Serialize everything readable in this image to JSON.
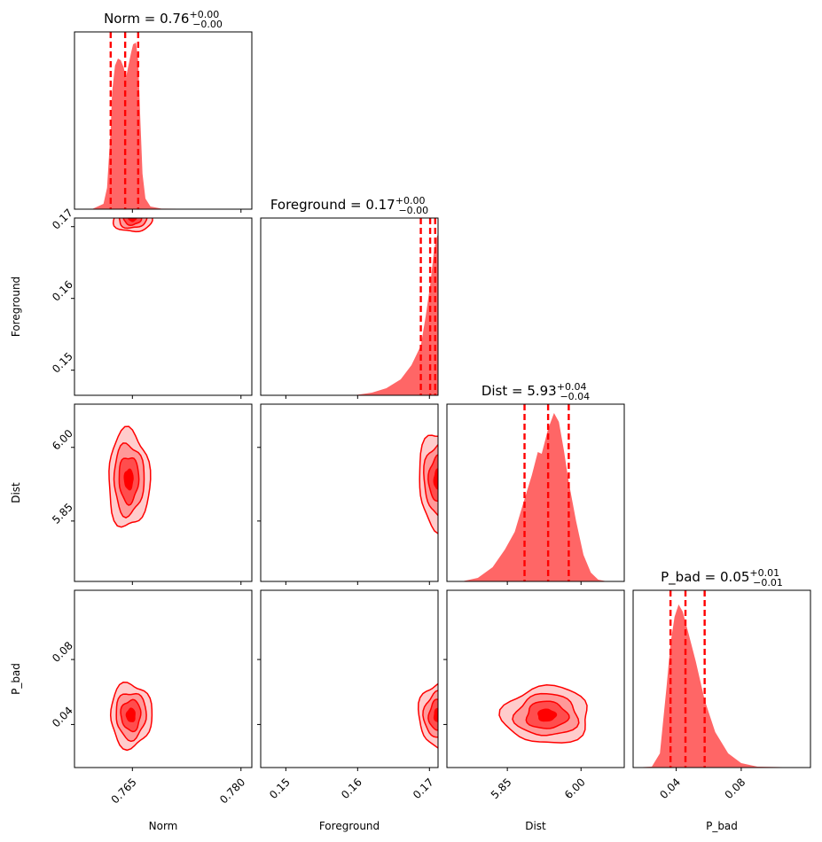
{
  "chart_data": {
    "type": "corner",
    "parameters": [
      "Norm",
      "Foreground",
      "Dist",
      "P_bad"
    ],
    "color": "#ff0000",
    "fill_color": "#ff6666",
    "panels_1d": [
      {
        "param": "Norm",
        "title_main": "Norm = 0.76",
        "title_sup": "+0.00",
        "title_sub": "−0.00",
        "quantiles": [
          0.762,
          0.764,
          0.7658
        ],
        "xlim": [
          0.757,
          0.7815
        ],
        "samples": [
          [
            0.757,
            0
          ],
          [
            0.7595,
            0.002
          ],
          [
            0.761,
            0.03
          ],
          [
            0.7615,
            0.12
          ],
          [
            0.762,
            0.45
          ],
          [
            0.7622,
            0.66
          ],
          [
            0.7626,
            0.81
          ],
          [
            0.763,
            0.85
          ],
          [
            0.7634,
            0.84
          ],
          [
            0.7638,
            0.8
          ],
          [
            0.7641,
            0.74
          ],
          [
            0.7644,
            0.8
          ],
          [
            0.7648,
            0.88
          ],
          [
            0.7651,
            0.93
          ],
          [
            0.7655,
            0.94
          ],
          [
            0.7658,
            0.84
          ],
          [
            0.7661,
            0.5
          ],
          [
            0.7664,
            0.2
          ],
          [
            0.7668,
            0.06
          ],
          [
            0.7675,
            0.015
          ],
          [
            0.769,
            0.003
          ],
          [
            0.7815,
            0
          ]
        ]
      },
      {
        "param": "Foreground",
        "title_main": "Foreground = 0.17",
        "title_sup": "+0.00",
        "title_sub": "−0.00",
        "quantiles": [
          0.1688,
          0.1701,
          0.1708
        ],
        "xlim": [
          0.1465,
          0.1712
        ],
        "samples": [
          [
            0.1465,
            0
          ],
          [
            0.159,
            0
          ],
          [
            0.16,
            0.003
          ],
          [
            0.162,
            0.015
          ],
          [
            0.164,
            0.04
          ],
          [
            0.166,
            0.09
          ],
          [
            0.1675,
            0.17
          ],
          [
            0.1688,
            0.28
          ],
          [
            0.1695,
            0.45
          ],
          [
            0.1701,
            0.62
          ],
          [
            0.1706,
            0.8
          ],
          [
            0.1709,
            0.88
          ],
          [
            0.1712,
            0.91
          ]
        ]
      },
      {
        "param": "Dist",
        "title_main": "Dist = 5.93",
        "title_sup": "+0.04",
        "title_sub": "−0.04",
        "quantiles": [
          5.885,
          5.933,
          5.975
        ],
        "xlim": [
          5.727,
          6.088
        ],
        "samples": [
          [
            5.727,
            0
          ],
          [
            5.76,
            0.002
          ],
          [
            5.79,
            0.02
          ],
          [
            5.82,
            0.08
          ],
          [
            5.845,
            0.18
          ],
          [
            5.865,
            0.28
          ],
          [
            5.88,
            0.42
          ],
          [
            5.9,
            0.6
          ],
          [
            5.912,
            0.73
          ],
          [
            5.92,
            0.72
          ],
          [
            5.933,
            0.86
          ],
          [
            5.945,
            0.95
          ],
          [
            5.955,
            0.9
          ],
          [
            5.965,
            0.74
          ],
          [
            5.975,
            0.56
          ],
          [
            5.99,
            0.34
          ],
          [
            6.005,
            0.15
          ],
          [
            6.02,
            0.05
          ],
          [
            6.035,
            0.01
          ],
          [
            6.05,
            0.002
          ],
          [
            6.088,
            0
          ]
        ]
      },
      {
        "param": "P_bad",
        "title_main": "P_bad = 0.05",
        "title_sup": "+0.01",
        "title_sub": "−0.01",
        "quantiles": [
          0.0365,
          0.0457,
          0.0575
        ],
        "xlim": [
          0.0135,
          0.1226
        ],
        "samples": [
          [
            0.0135,
            0
          ],
          [
            0.025,
            0.005
          ],
          [
            0.03,
            0.08
          ],
          [
            0.034,
            0.45
          ],
          [
            0.0365,
            0.7
          ],
          [
            0.039,
            0.85
          ],
          [
            0.0415,
            0.92
          ],
          [
            0.044,
            0.88
          ],
          [
            0.0475,
            0.76
          ],
          [
            0.052,
            0.6
          ],
          [
            0.0575,
            0.38
          ],
          [
            0.064,
            0.2
          ],
          [
            0.072,
            0.08
          ],
          [
            0.08,
            0.025
          ],
          [
            0.09,
            0.005
          ],
          [
            0.1226,
            0
          ]
        ]
      }
    ],
    "panels_2d": [
      {
        "x": "Norm",
        "y": "Foreground",
        "center": [
          0.765,
          0.1712
        ],
        "spread": [
          0.0012,
          0.0009
        ]
      },
      {
        "x": "Norm",
        "y": "Dist",
        "center": [
          0.7645,
          5.935
        ],
        "spread": [
          0.0013,
          0.045
        ]
      },
      {
        "x": "Norm",
        "y": "P_bad",
        "center": [
          0.7648,
          0.0457
        ],
        "spread": [
          0.0013,
          0.009
        ]
      },
      {
        "x": "Foreground",
        "y": "Dist",
        "center": [
          0.1712,
          5.935
        ],
        "spread": [
          0.0012,
          0.045
        ]
      },
      {
        "x": "Foreground",
        "y": "P_bad",
        "center": [
          0.1712,
          0.0457
        ],
        "spread": [
          0.0012,
          0.009
        ]
      },
      {
        "x": "Dist",
        "y": "P_bad",
        "center": [
          5.93,
          0.0457
        ],
        "spread": [
          0.04,
          0.008
        ]
      }
    ],
    "axes": {
      "Norm": {
        "lim": [
          0.757,
          0.7815
        ],
        "ticks": [
          0.765,
          0.78
        ],
        "tick_labels": [
          "0.765",
          "0.780"
        ],
        "label": "Norm"
      },
      "Foreground": {
        "lim": [
          0.1465,
          0.1712
        ],
        "ticks": [
          0.15,
          0.16,
          0.17
        ],
        "tick_labels": [
          "0.15",
          "0.16",
          "0.17"
        ],
        "label": "Foreground"
      },
      "Dist": {
        "lim": [
          5.727,
          6.088
        ],
        "ticks": [
          5.85,
          6.0
        ],
        "tick_labels": [
          "5.85",
          "6.00"
        ],
        "label": "Dist"
      },
      "P_bad": {
        "lim": [
          0.0135,
          0.1226
        ],
        "ticks": [
          0.04,
          0.08
        ],
        "tick_labels": [
          "0.04",
          "0.08"
        ],
        "label": "P_bad"
      }
    },
    "grid": false,
    "legend": "none"
  }
}
